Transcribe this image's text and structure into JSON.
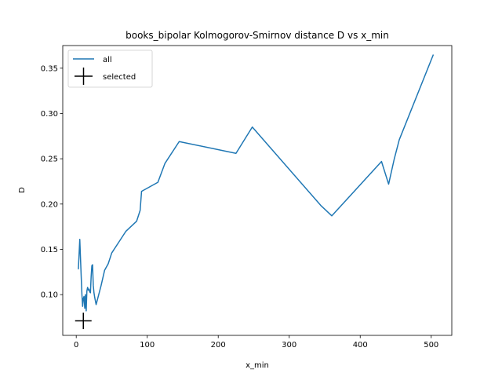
{
  "chart_data": {
    "type": "line",
    "title": "books_bipolar Kolmogorov-Smirnov distance D vs x_min",
    "xlabel": "x_min",
    "ylabel": "D",
    "xlim": [
      -19,
      529
    ],
    "ylim": [
      0.055,
      0.375
    ],
    "xticks": [
      0,
      100,
      200,
      300,
      400,
      500
    ],
    "yticks": [
      0.1,
      0.15,
      0.2,
      0.25,
      0.3,
      0.35
    ],
    "xtick_labels": [
      "0",
      "100",
      "200",
      "300",
      "400",
      "500"
    ],
    "ytick_labels": [
      "0.10",
      "0.15",
      "0.20",
      "0.25",
      "0.30",
      "0.35"
    ],
    "grid": false,
    "legend_position": "top-left",
    "series": [
      {
        "name": "all",
        "color": "#1f77b4",
        "style": "line",
        "x": [
          3,
          5,
          6,
          7,
          8,
          9,
          10,
          11,
          12,
          13,
          14,
          15,
          16,
          17,
          18,
          19,
          20,
          21,
          22,
          23,
          24,
          25,
          26,
          28,
          30,
          35,
          40,
          45,
          50,
          60,
          70,
          85,
          90,
          92,
          115,
          125,
          145,
          225,
          248,
          345,
          360,
          430,
          440,
          448,
          455,
          503
        ],
        "y": [
          0.128,
          0.161,
          0.14,
          0.12,
          0.1,
          0.087,
          0.096,
          0.098,
          0.085,
          0.1,
          0.082,
          0.104,
          0.108,
          0.105,
          0.106,
          0.103,
          0.102,
          0.12,
          0.132,
          0.133,
          0.11,
          0.102,
          0.097,
          0.089,
          0.095,
          0.11,
          0.127,
          0.134,
          0.146,
          0.158,
          0.17,
          0.181,
          0.193,
          0.214,
          0.224,
          0.245,
          0.269,
          0.256,
          0.285,
          0.198,
          0.187,
          0.247,
          0.222,
          0.25,
          0.271,
          0.365
        ]
      },
      {
        "name": "selected",
        "color": "#000000",
        "style": "marker-plus",
        "x": [
          10
        ],
        "y": [
          0.071
        ]
      }
    ]
  }
}
